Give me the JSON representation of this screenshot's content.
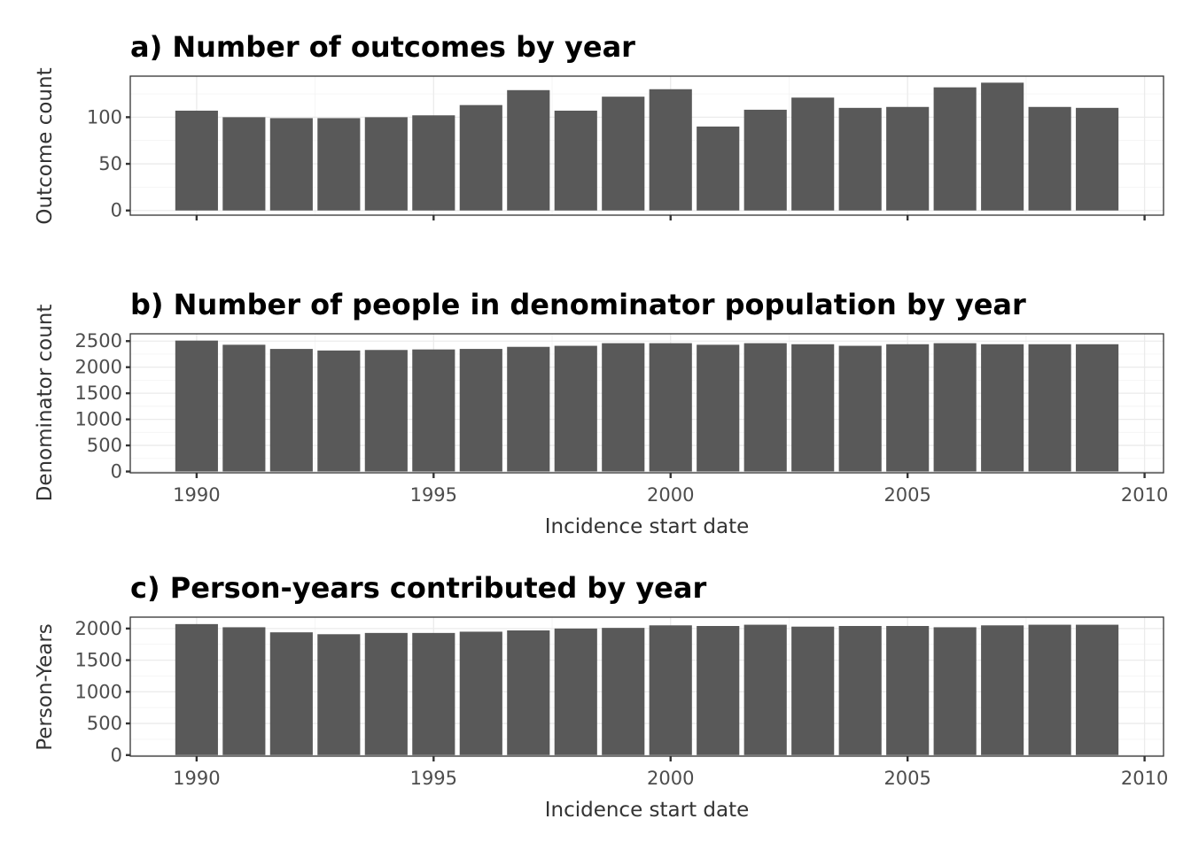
{
  "chart_data": [
    {
      "type": "bar",
      "title": "a) Number of outcomes by year",
      "xlabel": "",
      "ylabel": "Outcome count",
      "x": [
        1990,
        1991,
        1992,
        1993,
        1994,
        1995,
        1996,
        1997,
        1998,
        1999,
        2000,
        2001,
        2002,
        2003,
        2004,
        2005,
        2006,
        2007,
        2008,
        2009
      ],
      "values": [
        107,
        100,
        99,
        99,
        100,
        102,
        113,
        129,
        107,
        122,
        130,
        90,
        108,
        121,
        110,
        111,
        132,
        137,
        111,
        110
      ],
      "xlim": [
        1988.6,
        2010.4
      ],
      "ylim": [
        -5,
        144
      ],
      "xticks": [
        1990,
        1995,
        2000,
        2005,
        2010
      ],
      "xtick_labels_shown": false,
      "yticks": [
        0,
        50,
        100
      ],
      "yticklabels": [
        "0",
        "50",
        "100"
      ],
      "grid": true,
      "color": "#595959"
    },
    {
      "type": "bar",
      "title": "b) Number of people in denominator population by year",
      "xlabel": "Incidence start date",
      "ylabel": "Denominator count",
      "x": [
        1990,
        1991,
        1992,
        1993,
        1994,
        1995,
        1996,
        1997,
        1998,
        1999,
        2000,
        2001,
        2002,
        2003,
        2004,
        2005,
        2006,
        2007,
        2008,
        2009
      ],
      "values": [
        2510,
        2430,
        2350,
        2320,
        2330,
        2340,
        2350,
        2390,
        2410,
        2460,
        2460,
        2430,
        2460,
        2440,
        2410,
        2440,
        2460,
        2440,
        2440,
        2440
      ],
      "xlim": [
        1988.6,
        2010.4
      ],
      "ylim": [
        -25,
        2640
      ],
      "xticks": [
        1990,
        1995,
        2000,
        2005,
        2010
      ],
      "xticklabels": [
        "1990",
        "1995",
        "2000",
        "2005",
        "2010"
      ],
      "xtick_labels_shown": true,
      "yticks": [
        0,
        500,
        1000,
        1500,
        2000,
        2500
      ],
      "yticklabels": [
        "0",
        "500",
        "1000",
        "1500",
        "2000",
        "2500"
      ],
      "grid": true,
      "color": "#595959"
    },
    {
      "type": "bar",
      "title": "c) Person-years contributed by year",
      "xlabel": "Incidence start date",
      "ylabel": "Person-Years",
      "x": [
        1990,
        1991,
        1992,
        1993,
        1994,
        1995,
        1996,
        1997,
        1998,
        1999,
        2000,
        2001,
        2002,
        2003,
        2004,
        2005,
        2006,
        2007,
        2008,
        2009
      ],
      "values": [
        2070,
        2020,
        1940,
        1910,
        1930,
        1930,
        1950,
        1970,
        2000,
        2010,
        2050,
        2040,
        2060,
        2030,
        2040,
        2040,
        2020,
        2050,
        2060,
        2060
      ],
      "xlim": [
        1988.6,
        2010.4
      ],
      "ylim": [
        -17,
        2180
      ],
      "xticks": [
        1990,
        1995,
        2000,
        2005,
        2010
      ],
      "xticklabels": [
        "1990",
        "1995",
        "2000",
        "2005",
        "2010"
      ],
      "xtick_labels_shown": true,
      "yticks": [
        0,
        500,
        1000,
        1500,
        2000
      ],
      "yticklabels": [
        "0",
        "500",
        "1000",
        "1500",
        "2000"
      ],
      "grid": true,
      "color": "#595959"
    }
  ]
}
